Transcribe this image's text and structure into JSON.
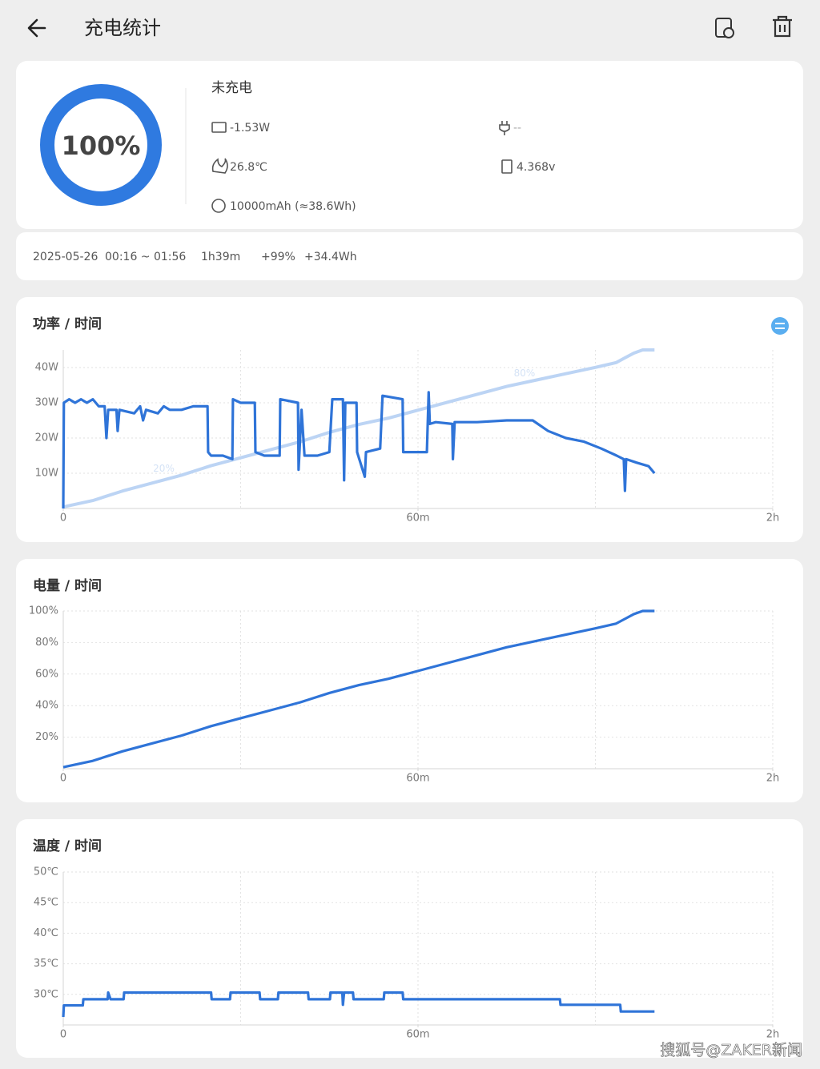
{
  "header": {
    "title": "充电统计"
  },
  "status": {
    "percent": "100%",
    "state": "未充电",
    "power": "-1.53W",
    "plug": "--",
    "temperature": "26.8℃",
    "voltage": "4.368v",
    "capacity": "10000mAh (≈38.6Wh)"
  },
  "session": {
    "date": "2025-05-26",
    "time": "00:16 ~ 01:56",
    "duration": "1h39m",
    "percent_gain": "+99%",
    "energy": "+34.4Wh"
  },
  "chart_data": [
    {
      "type": "line",
      "title": "功率 / 时间",
      "xlim": [
        0,
        120
      ],
      "xticks": [
        0,
        {
          "value": 60,
          "label": "60m"
        },
        {
          "value": 120,
          "label": "2h"
        }
      ],
      "xgrid": [
        0,
        30,
        60,
        90,
        120
      ],
      "ylim": [
        0,
        45
      ],
      "yticks": [
        {
          "value": 10,
          "label": "10W"
        },
        {
          "value": 20,
          "label": "20W"
        },
        {
          "value": 30,
          "label": "30W"
        },
        {
          "value": 40,
          "label": "40W"
        }
      ],
      "y2lim": [
        0,
        100
      ],
      "grid": true,
      "series": [
        {
          "color": "#bcd4f4",
          "axis": "y2",
          "x": [
            0,
            5,
            10,
            15,
            20,
            25,
            30,
            35,
            40,
            45,
            50,
            55,
            60,
            65,
            70,
            75,
            80,
            85,
            90,
            93.5,
            95,
            96.5,
            98,
            100
          ],
          "values": [
            1,
            5,
            11,
            16,
            21,
            27,
            32,
            37,
            42,
            48,
            53,
            57,
            62,
            67,
            72,
            77,
            81,
            85,
            89,
            92,
            95,
            98,
            100,
            100
          ]
        },
        {
          "color": "#2f74d8",
          "x": [
            0,
            0.1,
            1,
            2,
            3,
            4,
            5,
            6,
            7,
            7.3,
            7.6,
            9,
            9.2,
            9.5,
            12,
            13,
            13.5,
            14,
            16,
            17,
            18,
            20,
            22,
            24.4,
            24.5,
            25,
            27,
            28.6,
            28.7,
            30,
            32.4,
            32.5,
            34,
            36.6,
            36.7,
            39.7,
            39.8,
            40.3,
            40.8,
            43,
            45,
            45.5,
            47.3,
            47.5,
            47.7,
            49.6,
            49.7,
            51,
            51.2,
            53.6,
            54,
            57.4,
            57.5,
            61.5,
            61.8,
            62,
            63,
            65.8,
            65.9,
            66.2,
            70,
            75,
            79.4,
            82,
            85,
            88,
            91,
            93.6,
            94.8,
            95,
            95.2,
            97,
            99,
            100
          ],
          "values": [
            0,
            30,
            31,
            30,
            31,
            30,
            31,
            29,
            29,
            20,
            28,
            28,
            22,
            28,
            27,
            29,
            25,
            28,
            27,
            29,
            28,
            28,
            29,
            29,
            16,
            15,
            15,
            14,
            31,
            30,
            30,
            16,
            15,
            15,
            31,
            30,
            11,
            28,
            15,
            15,
            16,
            31,
            31,
            8,
            30,
            30,
            16,
            9,
            16,
            17,
            32,
            31,
            16,
            16,
            33,
            24,
            24.5,
            24,
            14,
            24.5,
            24.5,
            25,
            25,
            22,
            20,
            19,
            17,
            15,
            14,
            5,
            14,
            13,
            12,
            10
          ]
        }
      ],
      "annotations": [
        {
          "text": "20%",
          "x": 17,
          "y": 20,
          "axis": "y2"
        },
        {
          "text": "80%",
          "x": 78,
          "y": 80,
          "axis": "y2"
        }
      ]
    },
    {
      "type": "line",
      "title": "电量 / 时间",
      "xlim": [
        0,
        120
      ],
      "xticks": [
        0,
        {
          "value": 60,
          "label": "60m"
        },
        {
          "value": 120,
          "label": "2h"
        }
      ],
      "xgrid": [
        0,
        30,
        60,
        90,
        120
      ],
      "ylim": [
        0,
        100
      ],
      "yticks": [
        {
          "value": 20,
          "label": "20%"
        },
        {
          "value": 40,
          "label": "40%"
        },
        {
          "value": 60,
          "label": "60%"
        },
        {
          "value": 80,
          "label": "80%"
        },
        {
          "value": 100,
          "label": "100%"
        }
      ],
      "grid": true,
      "series": [
        {
          "color": "#2f74d8",
          "x": [
            0,
            5,
            10,
            15,
            20,
            25,
            30,
            35,
            40,
            45,
            50,
            55,
            60,
            65,
            70,
            75,
            80,
            85,
            90,
            93.5,
            95,
            96.5,
            98,
            100
          ],
          "values": [
            1,
            5,
            11,
            16,
            21,
            27,
            32,
            37,
            42,
            48,
            53,
            57,
            62,
            67,
            72,
            77,
            81,
            85,
            89,
            92,
            95,
            98,
            100,
            100
          ]
        }
      ]
    },
    {
      "type": "line",
      "title": "温度 / 时间",
      "xlim": [
        0,
        120
      ],
      "xticks": [
        0,
        {
          "value": 60,
          "label": "60m"
        },
        {
          "value": 120,
          "label": "2h"
        }
      ],
      "xgrid": [
        0,
        30,
        60,
        90,
        120
      ],
      "ylim": [
        25,
        50
      ],
      "yticks": [
        {
          "value": 30,
          "label": "30℃"
        },
        {
          "value": 35,
          "label": "35℃"
        },
        {
          "value": 40,
          "label": "40℃"
        },
        {
          "value": 45,
          "label": "45℃"
        },
        {
          "value": 50,
          "label": "50℃"
        }
      ],
      "grid": true,
      "series": [
        {
          "color": "#2f74d8",
          "x": [
            0,
            0.1,
            3.3,
            3.4,
            7.5,
            7.6,
            8,
            10.2,
            10.3,
            25,
            25.1,
            28.2,
            28.3,
            33.2,
            33.3,
            36.3,
            36.4,
            41.4,
            41.5,
            45.1,
            45.2,
            47.2,
            47.3,
            47.5,
            49,
            49.1,
            54.2,
            54.3,
            57.4,
            57.5,
            84,
            84.1,
            94.2,
            94.3,
            100
          ],
          "values": [
            26.3,
            28.2,
            28.2,
            29.2,
            29.2,
            30.3,
            29.2,
            29.2,
            30.3,
            30.3,
            29.2,
            29.2,
            30.3,
            30.3,
            29.2,
            29.2,
            30.3,
            30.3,
            29.2,
            29.2,
            30.3,
            30.3,
            28.3,
            30.3,
            30.3,
            29.2,
            29.2,
            30.3,
            30.3,
            29.2,
            29.2,
            28.3,
            28.3,
            27.2,
            27.2
          ]
        }
      ]
    }
  ],
  "watermark": "搜狐号@ZAKER新闻"
}
